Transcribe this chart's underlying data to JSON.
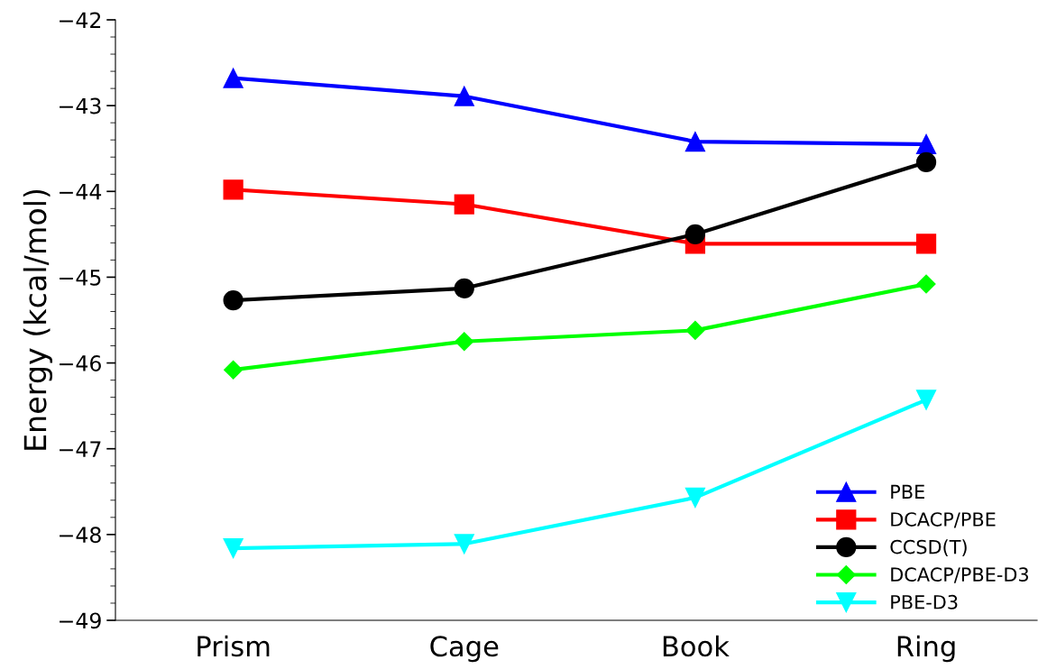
{
  "chart_data": {
    "type": "line",
    "ylabel": "Energy (kcal/mol)",
    "categories": [
      "Prism",
      "Cage",
      "Book",
      "Ring"
    ],
    "ylim": [
      -49,
      -42
    ],
    "yticks": [
      {
        "value": -49,
        "label": "−49"
      },
      {
        "value": -48,
        "label": "−48"
      },
      {
        "value": -47,
        "label": "−47"
      },
      {
        "value": -46,
        "label": "−46"
      },
      {
        "value": -45,
        "label": "−45"
      },
      {
        "value": -44,
        "label": "−44"
      },
      {
        "value": -43,
        "label": "−43"
      },
      {
        "value": -42,
        "label": "−42"
      }
    ],
    "grid": false,
    "legend": "bottom right",
    "line_style": "solid",
    "series": [
      {
        "name": "PBE",
        "color": "#0000ff",
        "marker": "triangle",
        "values": [
          -42.68,
          -42.89,
          -43.42,
          -43.45
        ]
      },
      {
        "name": "DCACP/PBE",
        "color": "#ff0000",
        "marker": "square",
        "values": [
          -43.98,
          -44.15,
          -44.61,
          -44.61
        ]
      },
      {
        "name": "CCSD(T)",
        "color": "#000000",
        "marker": "circle",
        "values": [
          -45.27,
          -45.13,
          -44.5,
          -43.66
        ]
      },
      {
        "name": "DCACP/PBE-D3",
        "color": "#00ff00",
        "marker": "diamond",
        "values": [
          -46.08,
          -45.75,
          -45.62,
          -45.08
        ]
      },
      {
        "name": "PBE-D3",
        "color": "#00ffff",
        "marker": "triangle_down",
        "values": [
          -48.16,
          -48.11,
          -47.57,
          -46.43
        ]
      }
    ]
  }
}
